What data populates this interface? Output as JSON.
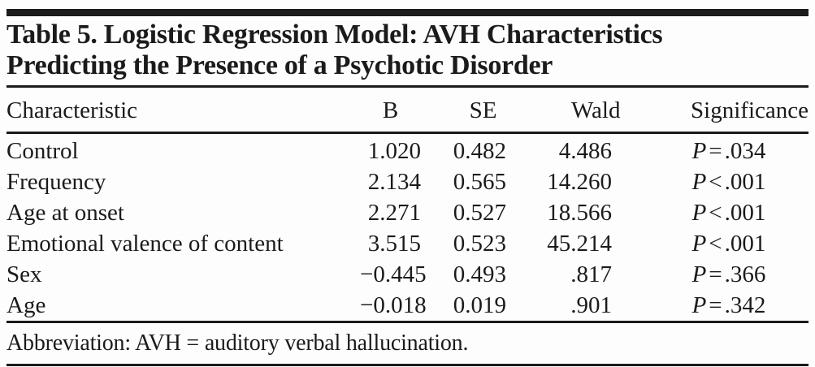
{
  "title": {
    "line1": "Table 5. Logistic Regression Model: AVH Characteristics",
    "line2": "Predicting the Presence of a Psychotic Disorder"
  },
  "table": {
    "columns": {
      "characteristic": "Characteristic",
      "b": "B",
      "se": "SE",
      "wald": "Wald",
      "significance": "Significance"
    },
    "rows": [
      {
        "characteristic": "Control",
        "b": "1.020",
        "se": "0.482",
        "wald": "4.486",
        "p": "P",
        "rel": "=",
        "pval": ".034"
      },
      {
        "characteristic": "Frequency",
        "b": "2.134",
        "se": "0.565",
        "wald": "14.260",
        "p": "P",
        "rel": "<",
        "pval": ".001"
      },
      {
        "characteristic": "Age at onset",
        "b": "2.271",
        "se": "0.527",
        "wald": "18.566",
        "p": "P",
        "rel": "<",
        "pval": ".001"
      },
      {
        "characteristic": "Emotional valence of content",
        "b": "3.515",
        "se": "0.523",
        "wald": "45.214",
        "p": "P",
        "rel": "<",
        "pval": ".001"
      },
      {
        "characteristic": "Sex",
        "b": "−0.445",
        "se": "0.493",
        "wald": ".817",
        "p": "P",
        "rel": "=",
        "pval": ".366"
      },
      {
        "characteristic": "Age",
        "b": "−0.018",
        "se": "0.019",
        "wald": ".901",
        "p": "P",
        "rel": "=",
        "pval": ".342"
      }
    ],
    "footnote": "Abbreviation: AVH = auditory verbal hallucination."
  },
  "colors": {
    "text": "#1b1b1b",
    "rule": "#1b1b1b",
    "background": "#fdfdfd"
  }
}
